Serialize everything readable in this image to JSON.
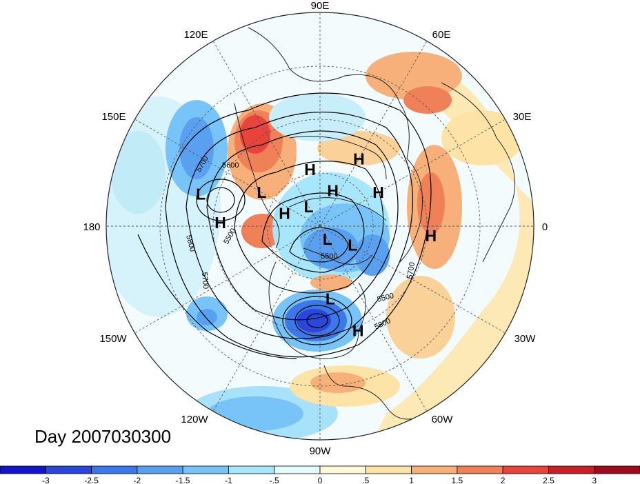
{
  "title": "Day 2007030300",
  "longitude_labels": [
    "90E",
    "60E",
    "30E",
    "0",
    "30W",
    "60W",
    "90W",
    "120W",
    "150W",
    "180",
    "150E",
    "120E"
  ],
  "centers": [
    {
      "type": "H",
      "lat": 60,
      "lon": 100
    },
    {
      "type": "H",
      "lat": 50,
      "lon": 60
    },
    {
      "type": "H",
      "lat": 55,
      "lon": 30
    },
    {
      "type": "H",
      "lat": 70,
      "lon": 70
    },
    {
      "type": "H",
      "lat": 35,
      "lon": -5
    },
    {
      "type": "H",
      "lat": 35,
      "lon": -70
    },
    {
      "type": "H",
      "lat": 70,
      "lon": 160
    },
    {
      "type": "H",
      "lat": 40,
      "lon": 178
    },
    {
      "type": "L",
      "lat": 78,
      "lon": 120
    },
    {
      "type": "L",
      "lat": 82,
      "lon": -60
    },
    {
      "type": "L",
      "lat": 70,
      "lon": -30
    },
    {
      "type": "L",
      "lat": 55,
      "lon": 150
    },
    {
      "type": "L",
      "lat": 30,
      "lon": 165
    },
    {
      "type": "L",
      "lat": 52,
      "lon": -82
    }
  ],
  "contour_labels": [
    "5500",
    "5600",
    "5700",
    "5800",
    "5500",
    "5700",
    "5800",
    "5500",
    "5700"
  ],
  "colorbar": {
    "ticks": [
      "-3",
      "-2.5",
      "-2",
      "-1.5",
      "-1",
      "-.5",
      "0",
      ".5",
      "1",
      "1.5",
      "2",
      "2.5",
      "3"
    ],
    "colors": [
      "#1414c8",
      "#2a46dc",
      "#3c78ea",
      "#5aa0f0",
      "#78c4f8",
      "#a8e6fc",
      "#e6fafc",
      "#fff9d8",
      "#fde4a6",
      "#f8b07a",
      "#f08058",
      "#e8443c",
      "#c81e28",
      "#a00a1e"
    ]
  },
  "colors": {
    "coast": "#222222",
    "contour": "#000000",
    "grid": "#555555"
  }
}
